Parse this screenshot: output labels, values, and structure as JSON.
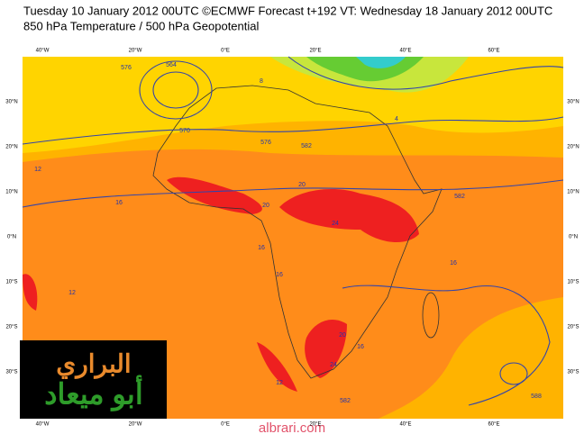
{
  "header": {
    "lines": [
      "Tuesday 10 January 2012 00UTC ©ECMWF Forecast t+192 VT: Wednesday 18 January 2012 00UTC",
      "850 hPa Temperature / 500 hPa Geopotential"
    ]
  },
  "axes": {
    "lon_labels": [
      "40°W",
      "20°W",
      "0°E",
      "20°E",
      "40°E",
      "60°E"
    ],
    "lat_labels": [
      "30°N",
      "20°N",
      "10°N",
      "0°N",
      "10°S",
      "20°S",
      "30°S"
    ]
  },
  "contour_labels": [
    "576",
    "564",
    "570",
    "582",
    "576",
    "582",
    "12",
    "16",
    "20",
    "24",
    "20",
    "16",
    "16",
    "12",
    "16",
    "20",
    "24",
    "16",
    "582",
    "12",
    "8",
    "4",
    "588"
  ],
  "watermark": {
    "line1": "البراري",
    "line2": "أبو ميعاد",
    "site": "albrari.com"
  }
}
